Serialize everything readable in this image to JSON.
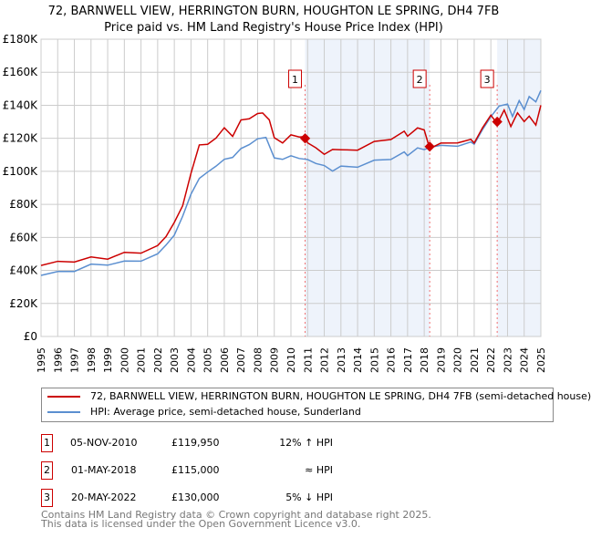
{
  "chart_data": {
    "type": "line",
    "title": "72, BARNWELL VIEW, HERRINGTON BURN, HOUGHTON LE SPRING, DH4 7FB",
    "subtitle": "Price paid vs. HM Land Registry's House Price Index (HPI)",
    "xlim": [
      1995,
      2025
    ],
    "ylim": [
      0,
      180000
    ],
    "yticks": [
      0,
      20000,
      40000,
      60000,
      80000,
      100000,
      120000,
      140000,
      160000,
      180000
    ],
    "ytick_labels": [
      "£0",
      "£20K",
      "£40K",
      "£60K",
      "£80K",
      "£100K",
      "£120K",
      "£140K",
      "£160K",
      "£180K"
    ],
    "xticks": [
      "1995",
      "1996",
      "1997",
      "1998",
      "1999",
      "2000",
      "2001",
      "2002",
      "2003",
      "2004",
      "2005",
      "2006",
      "2007",
      "2008",
      "2009",
      "2010",
      "2011",
      "2012",
      "2013",
      "2014",
      "2015",
      "2016",
      "2017",
      "2018",
      "2019",
      "2020",
      "2021",
      "2022",
      "2023",
      "2024",
      "2025"
    ],
    "grid": true,
    "series": [
      {
        "name": "72, BARNWELL VIEW, HERRINGTON BURN, HOUGHTON LE SPRING, DH4 7FB (semi-detached house)",
        "color": "#cc0000",
        "x": [
          1995,
          1996,
          1997,
          1998,
          1999,
          2000,
          2001,
          2002,
          2002.5,
          2003,
          2003.5,
          2004,
          2004.5,
          2005,
          2005.5,
          2006,
          2006.5,
          2007,
          2007.5,
          2008,
          2008.3,
          2008.7,
          2009,
          2009.5,
          2010,
          2010.5,
          2010.85,
          2011,
          2011.5,
          2012,
          2012.5,
          2013,
          2014,
          2015,
          2016,
          2016.8,
          2017,
          2017.6,
          2018,
          2018.33,
          2019,
          2020,
          2020.8,
          2021,
          2021.5,
          2022,
          2022.38,
          2022.8,
          2023.2,
          2023.6,
          2024,
          2024.3,
          2024.7,
          2025
        ],
        "y": [
          43000,
          45000,
          46000,
          47000,
          48000,
          50000,
          51000,
          55000,
          60000,
          70000,
          78000,
          100000,
          115000,
          117000,
          120000,
          126000,
          122000,
          130000,
          133000,
          134000,
          136000,
          131000,
          120000,
          118000,
          121000,
          122000,
          119950,
          118000,
          114000,
          110000,
          114000,
          112000,
          114000,
          117000,
          120000,
          124000,
          121000,
          127000,
          124000,
          115000,
          116000,
          118000,
          119000,
          117000,
          127000,
          133000,
          130000,
          136000,
          128000,
          135000,
          130000,
          134000,
          127000,
          140000
        ]
      },
      {
        "name": "HPI: Average price, semi-detached house, Sunderland",
        "color": "#5b8fd0",
        "x": [
          1995,
          1996,
          1997,
          1998,
          1999,
          2000,
          2001,
          2002,
          2002.5,
          2003,
          2003.5,
          2004,
          2004.5,
          2005,
          2005.5,
          2006,
          2006.5,
          2007,
          2007.5,
          2008,
          2008.5,
          2009,
          2009.5,
          2010,
          2010.5,
          2011,
          2011.5,
          2012,
          2012.5,
          2013,
          2014,
          2015,
          2016,
          2016.8,
          2017,
          2017.6,
          2018,
          2018.33,
          2019,
          2020,
          2020.8,
          2021,
          2021.5,
          2022,
          2022.5,
          2023,
          2023.3,
          2023.7,
          2024,
          2024.3,
          2024.7,
          2025
        ],
        "y": [
          37000,
          39000,
          40000,
          43000,
          44000,
          45000,
          46000,
          50000,
          55000,
          62000,
          72000,
          87000,
          95000,
          100000,
          103000,
          107000,
          109000,
          113000,
          117000,
          119000,
          121000,
          108000,
          107000,
          110000,
          107000,
          108000,
          104000,
          104000,
          100000,
          103000,
          103000,
          106000,
          108000,
          111000,
          110000,
          114000,
          113000,
          115000,
          115000,
          116000,
          117000,
          117000,
          125000,
          133000,
          140000,
          140000,
          134000,
          142000,
          138000,
          145000,
          142000,
          149000
        ]
      }
    ],
    "sales": [
      {
        "label": "1",
        "x": 2010.85,
        "y": 119950
      },
      {
        "label": "2",
        "x": 2018.33,
        "y": 115000
      },
      {
        "label": "3",
        "x": 2022.38,
        "y": 130000
      }
    ]
  },
  "legend": {
    "red": "72, BARNWELL VIEW, HERRINGTON BURN, HOUGHTON LE SPRING, DH4 7FB (semi-detached house)",
    "blue": "HPI: Average price, semi-detached house, Sunderland"
  },
  "table": [
    {
      "n": "1",
      "date": "05-NOV-2010",
      "price": "£119,950",
      "hpi": "12% ↑ HPI"
    },
    {
      "n": "2",
      "date": "01-MAY-2018",
      "price": "£115,000",
      "hpi": "≈ HPI"
    },
    {
      "n": "3",
      "date": "20-MAY-2022",
      "price": "£130,000",
      "hpi": "5% ↓ HPI"
    }
  ],
  "footer": {
    "line1": "Contains HM Land Registry data © Crown copyright and database right 2025.",
    "line2": "This data is licensed under the Open Government Licence v3.0."
  }
}
